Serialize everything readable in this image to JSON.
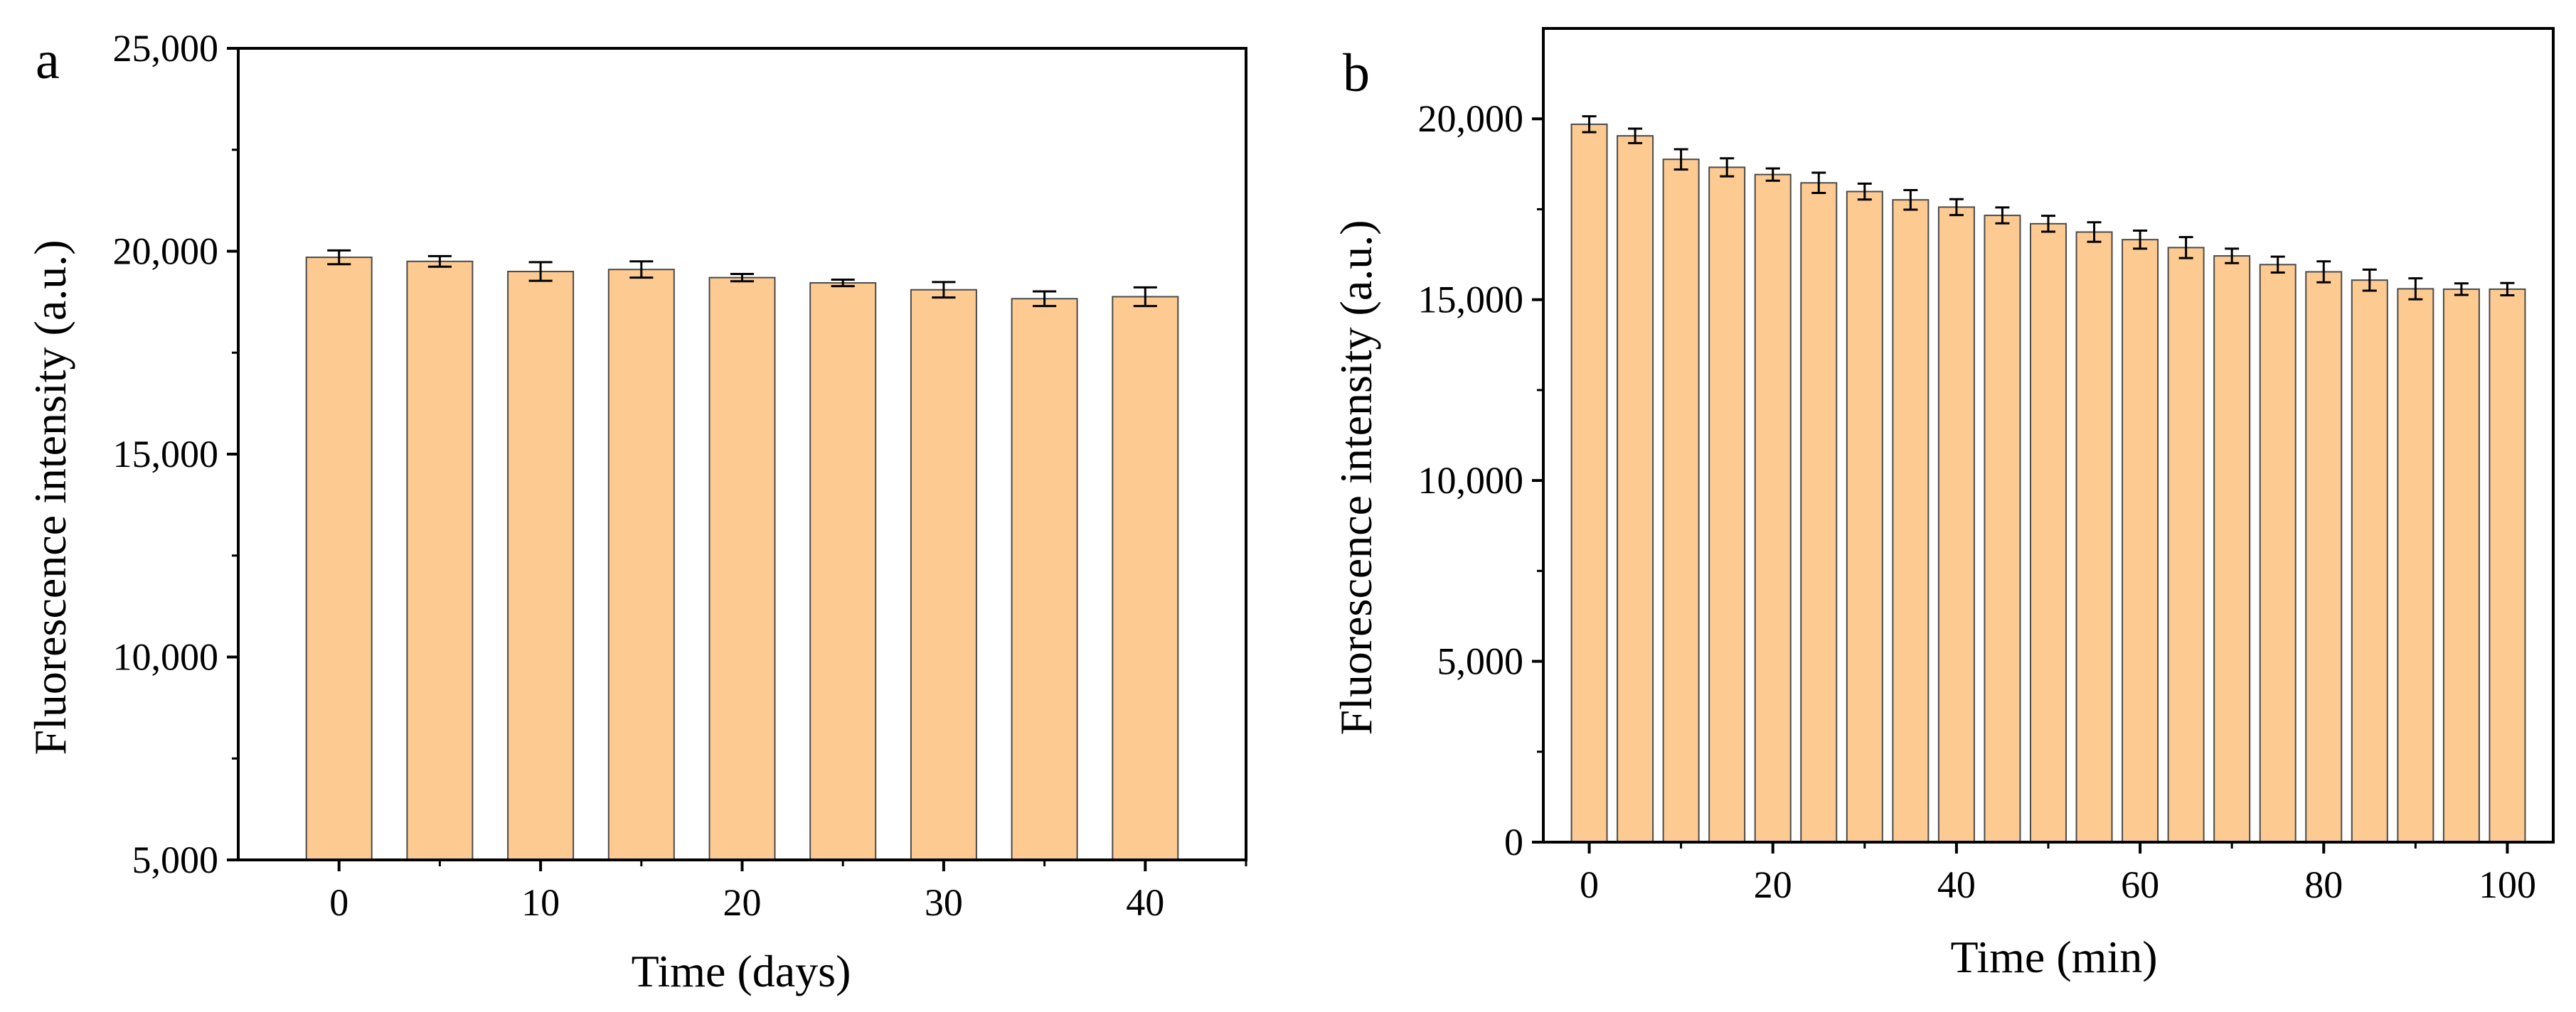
{
  "colors": {
    "bar_fill": "#FDCB91",
    "bar_stroke": "#4a4a4a",
    "axis": "#000000"
  },
  "chart_data": [
    {
      "panel": "a",
      "type": "bar",
      "xlabel": "Time (days)",
      "ylabel": "Fluorescence intensity (a.u.)",
      "x": [
        0,
        5,
        10,
        15,
        20,
        25,
        30,
        35,
        40
      ],
      "values": [
        19850,
        19750,
        19500,
        19550,
        19350,
        19220,
        19050,
        18830,
        18880
      ],
      "errors": [
        170,
        130,
        230,
        200,
        90,
        80,
        190,
        180,
        230
      ],
      "xlim": [
        -5,
        45
      ],
      "ylim": [
        5000,
        25000
      ],
      "xticks": [
        0,
        10,
        20,
        30,
        40
      ],
      "xtick_labels": [
        "0",
        "10",
        "20",
        "30",
        "40"
      ],
      "yticks": [
        5000,
        10000,
        15000,
        20000,
        25000
      ],
      "ytick_labels": [
        "5,000",
        "10,000",
        "15,000",
        "20,000",
        "25,000"
      ],
      "grid": false
    },
    {
      "panel": "b",
      "type": "bar",
      "xlabel": "Time (min)",
      "ylabel": "Fluorescence intensity (a.u.)",
      "x": [
        0,
        5,
        10,
        15,
        20,
        25,
        30,
        35,
        40,
        45,
        50,
        55,
        60,
        65,
        70,
        75,
        80,
        85,
        90,
        95,
        100
      ],
      "values": [
        19850,
        19530,
        18880,
        18660,
        18460,
        18230,
        17990,
        17760,
        17560,
        17330,
        17100,
        16870,
        16660,
        16440,
        16210,
        15970,
        15770,
        15540,
        15300,
        15290,
        15290
      ],
      "errors": [
        220,
        200,
        280,
        250,
        170,
        280,
        220,
        270,
        220,
        220,
        220,
        270,
        250,
        290,
        200,
        220,
        290,
        290,
        290,
        160,
        170
      ],
      "xlim": [
        -5,
        105
      ],
      "ylim": [
        0,
        22500
      ],
      "xticks": [
        0,
        20,
        40,
        60,
        80,
        100
      ],
      "xtick_labels": [
        "0",
        "20",
        "40",
        "60",
        "80",
        "100"
      ],
      "yticks": [
        0,
        5000,
        10000,
        15000,
        20000
      ],
      "ytick_labels": [
        "0",
        "5,000",
        "10,000",
        "15,000",
        "20,000"
      ],
      "grid": false
    }
  ]
}
